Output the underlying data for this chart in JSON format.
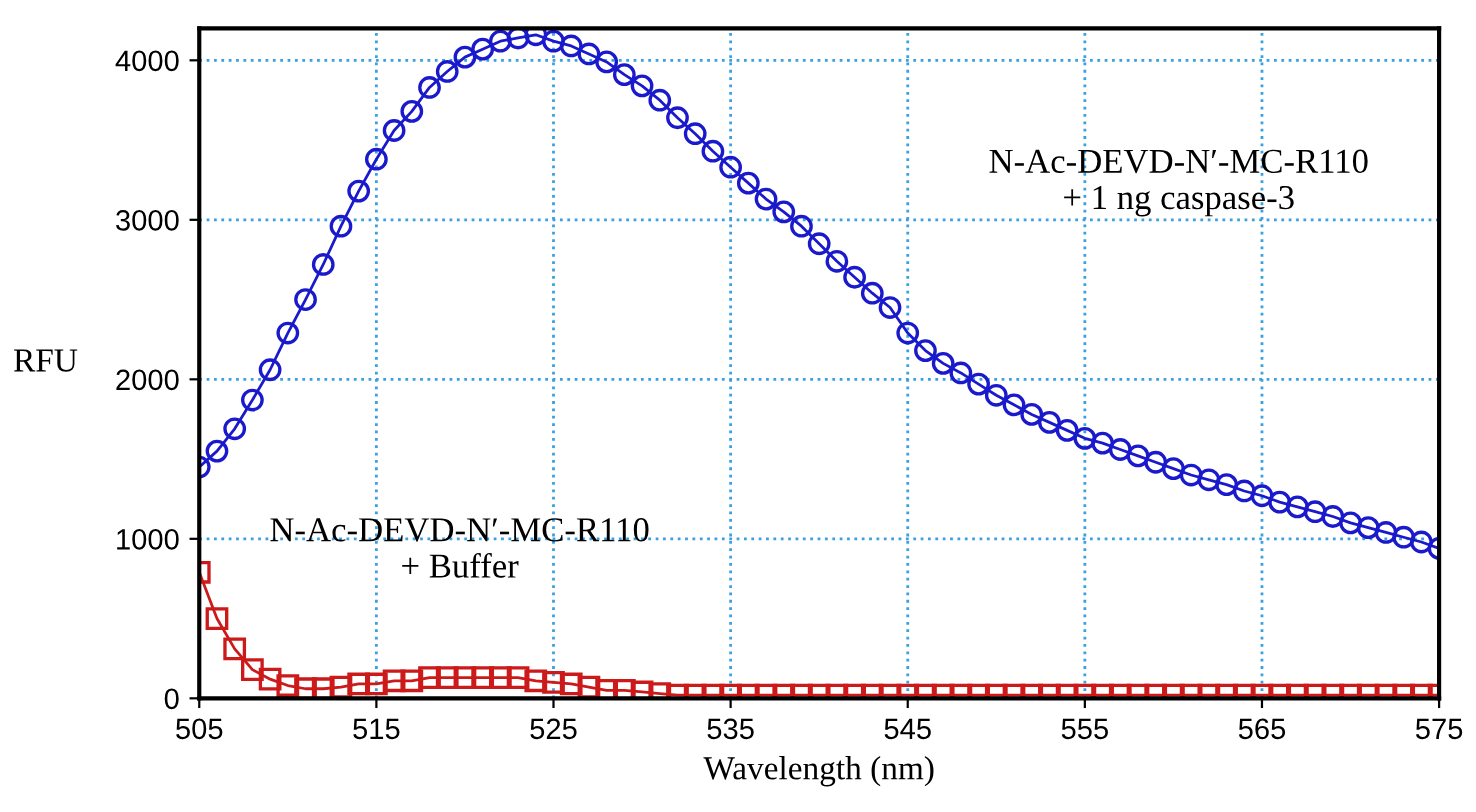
{
  "chart_data": {
    "type": "line",
    "xlabel": "Wavelength (nm)",
    "ylabel": "RFU",
    "x": [
      505,
      506,
      507,
      508,
      509,
      510,
      511,
      512,
      513,
      514,
      515,
      516,
      517,
      518,
      519,
      520,
      521,
      522,
      523,
      524,
      525,
      526,
      527,
      528,
      529,
      530,
      531,
      532,
      533,
      534,
      535,
      536,
      537,
      538,
      539,
      540,
      541,
      542,
      543,
      544,
      545,
      546,
      547,
      548,
      549,
      550,
      551,
      552,
      553,
      554,
      555,
      556,
      557,
      558,
      559,
      560,
      561,
      562,
      563,
      564,
      565,
      566,
      567,
      568,
      569,
      570,
      571,
      572,
      573,
      574,
      575
    ],
    "series": [
      {
        "color": "#1a1acc",
        "marker": "circle",
        "values": [
          1450,
          1550,
          1690,
          1870,
          2060,
          2290,
          2500,
          2720,
          2960,
          3180,
          3380,
          3560,
          3680,
          3830,
          3930,
          4020,
          4070,
          4120,
          4140,
          4160,
          4120,
          4090,
          4040,
          3990,
          3910,
          3840,
          3750,
          3640,
          3540,
          3430,
          3330,
          3230,
          3130,
          3050,
          2960,
          2850,
          2740,
          2640,
          2540,
          2450,
          2290,
          2180,
          2100,
          2040,
          1970,
          1900,
          1840,
          1780,
          1730,
          1680,
          1630,
          1600,
          1560,
          1520,
          1480,
          1440,
          1400,
          1370,
          1340,
          1300,
          1270,
          1230,
          1200,
          1170,
          1140,
          1100,
          1070,
          1040,
          1010,
          980,
          940
        ]
      },
      {
        "color": "#cc1a1a",
        "marker": "square",
        "values": [
          790,
          500,
          310,
          180,
          120,
          80,
          60,
          60,
          70,
          90,
          90,
          110,
          110,
          130,
          130,
          130,
          130,
          130,
          130,
          110,
          100,
          90,
          70,
          50,
          50,
          40,
          30,
          20,
          20,
          20,
          20,
          20,
          20,
          20,
          20,
          20,
          20,
          20,
          20,
          20,
          20,
          20,
          20,
          20,
          20,
          20,
          20,
          20,
          20,
          20,
          20,
          20,
          20,
          20,
          20,
          20,
          20,
          20,
          20,
          20,
          20,
          20,
          20,
          20,
          20,
          20,
          20,
          20,
          20,
          20,
          20
        ]
      }
    ],
    "xlim": [
      505,
      575
    ],
    "xticks": [
      505,
      515,
      525,
      535,
      545,
      555,
      565,
      575
    ],
    "ylim": [
      0,
      4200
    ],
    "yticks": [
      0,
      1000,
      2000,
      3000,
      4000
    ],
    "grid": true,
    "line_style": "solid",
    "annotations": [
      "N-Ac-DEVD-N′-MC-R110\n+ 1 ng caspase-3",
      "N-Ac-DEVD-N′-MC-R110\n+ Buffer"
    ]
  }
}
